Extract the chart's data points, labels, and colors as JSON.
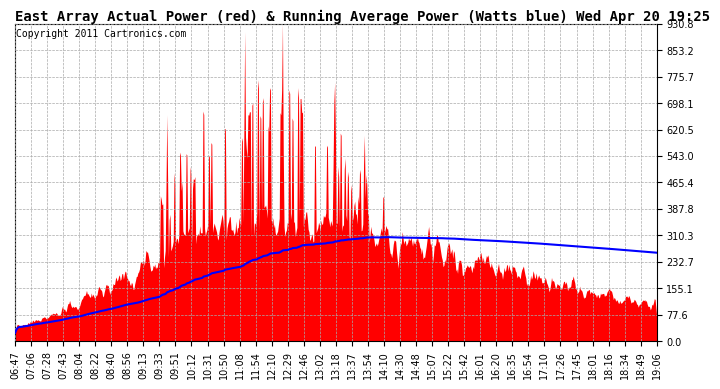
{
  "title": "East Array Actual Power (red) & Running Average Power (Watts blue) Wed Apr 20 19:25",
  "copyright": "Copyright 2011 Cartronics.com",
  "yticks": [
    0.0,
    77.6,
    155.1,
    232.7,
    310.3,
    387.8,
    465.4,
    543.0,
    620.5,
    698.1,
    775.7,
    853.2,
    930.8
  ],
  "ymax": 930.8,
  "ymin": 0.0,
  "xtick_labels": [
    "06:47",
    "07:06",
    "07:28",
    "07:43",
    "08:04",
    "08:22",
    "08:40",
    "08:56",
    "09:13",
    "09:33",
    "09:51",
    "10:12",
    "10:31",
    "10:50",
    "11:08",
    "11:54",
    "12:10",
    "12:29",
    "12:46",
    "13:02",
    "13:18",
    "13:37",
    "13:54",
    "14:10",
    "14:30",
    "14:48",
    "15:07",
    "15:22",
    "15:42",
    "16:01",
    "16:20",
    "16:35",
    "16:54",
    "17:10",
    "17:26",
    "17:45",
    "18:01",
    "18:16",
    "18:34",
    "18:49",
    "19:06"
  ],
  "area_color": "#FF0000",
  "line_color": "#0000FF",
  "background_color": "#FFFFFF",
  "grid_color": "#AAAAAA",
  "title_fontsize": 10,
  "copyright_fontsize": 7,
  "tick_fontsize": 7,
  "n_points": 800,
  "seed": 7
}
